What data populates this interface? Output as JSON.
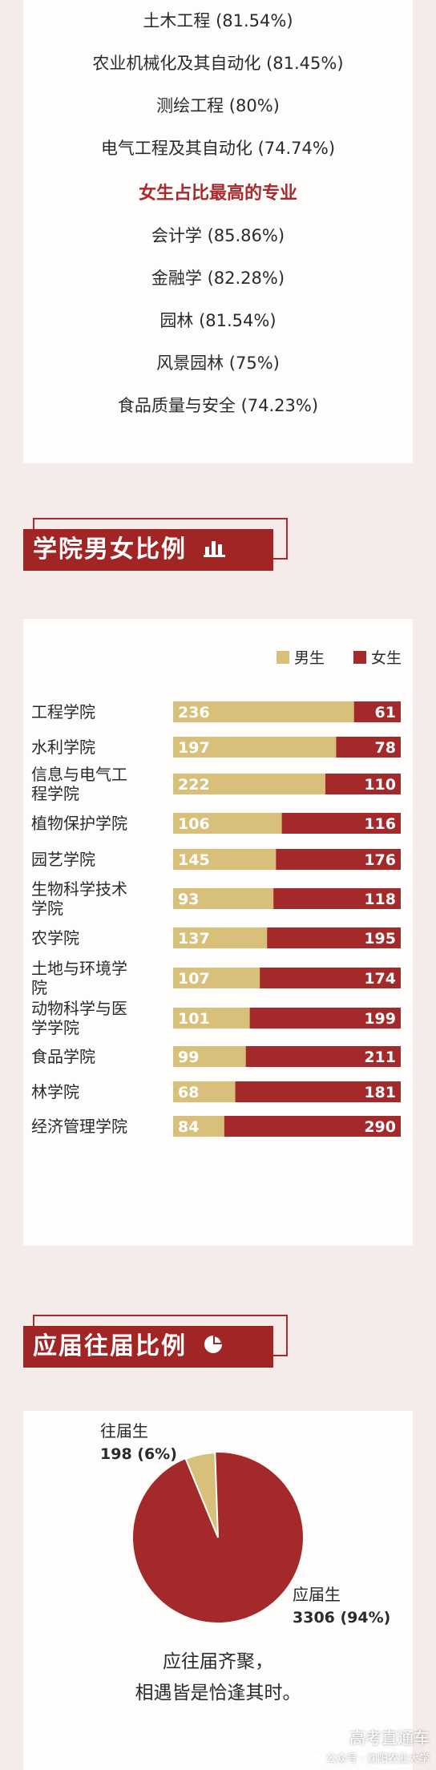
{
  "top_list": {
    "male_items": [
      "土木工程 (81.54%)",
      "农业机械化及其自动化 (81.45%)",
      "测绘工程 (80%)",
      "电气工程及其自动化 (74.74%)"
    ],
    "female_heading": "女生占比最高的专业",
    "female_items": [
      "会计学 (85.86%)",
      "金融学 (82.28%)",
      "园林 (81.54%)",
      "风景园林 (75%)",
      "食品质量与安全 (74.23%)"
    ]
  },
  "section_gender": {
    "title": "学院男女比例"
  },
  "section_fresh": {
    "title": "应届往届比例"
  },
  "colors": {
    "male": "#d8c07a",
    "female": "#a3292a",
    "accent": "#a82a2c"
  },
  "chart_data": [
    {
      "type": "bar",
      "stacked": true,
      "orientation": "horizontal",
      "title": "学院男女比例",
      "categories": [
        "工程学院",
        "水利学院",
        "信息与电气工程学院",
        "植物保护学院",
        "园艺学院",
        "生物科学技术学院",
        "农学院",
        "土地与环境学院",
        "动物科学与医学学院",
        "食品学院",
        "林学院",
        "经济管理学院"
      ],
      "category_lines": [
        [
          "工程学院"
        ],
        [
          "水利学院"
        ],
        [
          "信息与电气工",
          "程学院"
        ],
        [
          "植物保护学院"
        ],
        [
          "园艺学院"
        ],
        [
          "生物科学技术",
          "学院"
        ],
        [
          "农学院"
        ],
        [
          "土地与环境学",
          "院"
        ],
        [
          "动物科学与医",
          "学学院"
        ],
        [
          "食品学院"
        ],
        [
          "林学院"
        ],
        [
          "经济管理学院"
        ]
      ],
      "series": [
        {
          "name": "男生",
          "color": "#d8c07a",
          "values": [
            236,
            197,
            222,
            106,
            145,
            93,
            137,
            107,
            101,
            99,
            68,
            84
          ]
        },
        {
          "name": "女生",
          "color": "#a3292a",
          "values": [
            61,
            78,
            110,
            116,
            176,
            118,
            195,
            174,
            199,
            211,
            181,
            290
          ]
        }
      ],
      "legend_position": "top-right",
      "normalized": true
    },
    {
      "type": "pie",
      "title": "应届往届比例",
      "slices": [
        {
          "label": "往届生",
          "value": 198,
          "percent": 6,
          "text": "198 (6%)",
          "color": "#d8c07a"
        },
        {
          "label": "应届生",
          "value": 3306,
          "percent": 94,
          "text": "3306 (94%)",
          "color": "#a3292a"
        }
      ]
    }
  ],
  "footer": {
    "line1": "应往届齐聚，",
    "line2": "相遇皆是恰逢其时。"
  },
  "watermark": {
    "title": "高考直通车",
    "subtitle": "公众号 · 沈阳农业大学"
  }
}
